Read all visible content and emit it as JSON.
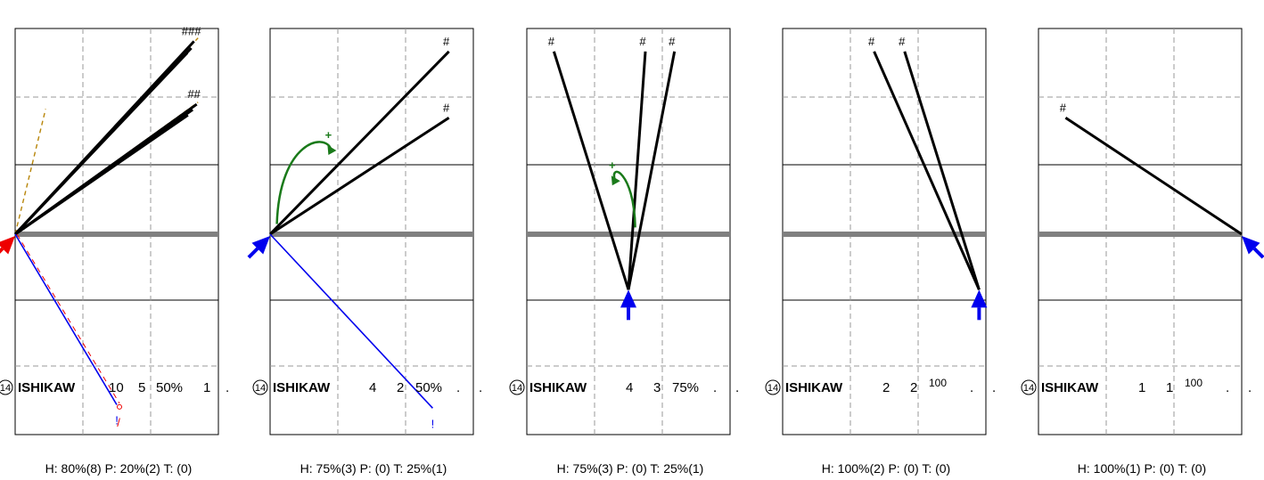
{
  "colors": {
    "frame": "#000000",
    "grid": "#999999",
    "baseline": "#808080",
    "line": "#000000",
    "dashes": "#b8860b",
    "blue": "#0000ee",
    "red": "#ee0000",
    "green": "#1a7a1a"
  },
  "chart_data": [
    {
      "type": "scatter",
      "batter": "ISHIKAW",
      "number": "14",
      "row": {
        "c1": "10",
        "c2": "5",
        "pct": "50%",
        "c4": "1",
        "c5": "."
      },
      "summary": "H: 80%(8)  P: 20%(2)  T: (0)",
      "origin": [
        0,
        0
      ],
      "arrow": {
        "color": "red",
        "dir": "upright"
      },
      "hits": [
        {
          "to": [
            2.64,
            2.85
          ],
          "mark": "###"
        },
        {
          "to": [
            2.6,
            2.75
          ]
        },
        {
          "to": [
            2.54,
            2.68
          ]
        },
        {
          "to": [
            2.68,
            1.92
          ],
          "mark": "##"
        },
        {
          "to": [
            2.62,
            1.84
          ]
        },
        {
          "to": [
            2.55,
            1.76
          ]
        }
      ],
      "dashed_lines": [
        {
          "to": [
            2.7,
            2.9
          ]
        },
        {
          "to": [
            2.7,
            1.95
          ]
        },
        {
          "to": [
            0.45,
            1.85
          ]
        }
      ],
      "blue_lines": [
        {
          "to": [
            1.5,
            -2.52
          ],
          "mark": "!"
        }
      ],
      "red_marks": [
        {
          "at": [
            1.5,
            -2.63
          ],
          "mark": "/"
        }
      ],
      "green": null
    },
    {
      "type": "scatter",
      "batter": "ISHIKAW",
      "number": "14",
      "row": {
        "c1": "4",
        "c2": "2",
        "pct": "50%",
        "c4": ".",
        "c5": "."
      },
      "summary": "H: 75%(3)  P: (0)  T: 25%(1)",
      "origin": [
        0,
        0
      ],
      "arrow": {
        "color": "blue",
        "dir": "upright"
      },
      "hits": [
        {
          "to": [
            2.64,
            2.7
          ],
          "mark": "#"
        },
        {
          "to": [
            2.64,
            1.72
          ],
          "mark": "#"
        }
      ],
      "dashed_lines": [],
      "blue_lines": [
        {
          "to": [
            2.4,
            -2.57
          ],
          "mark": "!"
        }
      ],
      "red_marks": [],
      "green": {
        "from": [
          0.1,
          0.15
        ],
        "to": [
          0.9,
          1.25
        ],
        "mark": "+"
      }
    },
    {
      "type": "scatter",
      "batter": "ISHIKAW",
      "number": "14",
      "row": {
        "c1": "4",
        "c2": "3",
        "pct": "75%",
        "c4": ".",
        "c5": "."
      },
      "summary": "H: 75%(3)  P: (0)  T: 25%(1)",
      "origin": [
        1.5,
        -0.82
      ],
      "arrow": {
        "color": "blue",
        "dir": "up"
      },
      "hits": [
        {
          "to": [
            0.4,
            2.7
          ],
          "mark": "#"
        },
        {
          "to": [
            1.75,
            2.7
          ],
          "mark": "#"
        },
        {
          "to": [
            2.18,
            2.7
          ],
          "mark": "#"
        }
      ],
      "dashed_lines": [],
      "blue_lines": [],
      "red_marks": [],
      "green": {
        "from": [
          1.6,
          0.1
        ],
        "to": [
          1.3,
          0.8
        ],
        "mark": "+"
      }
    },
    {
      "type": "scatter",
      "batter": "ISHIKAW",
      "number": "14",
      "row": {
        "c1": "2",
        "c2": "2",
        "pct": "100",
        "c4": ".",
        "c5": "."
      },
      "summary": "H: 100%(2)  P: (0)  T: (0)",
      "origin": [
        2.9,
        -0.82
      ],
      "arrow": {
        "color": "blue",
        "dir": "up"
      },
      "hits": [
        {
          "to": [
            1.35,
            2.7
          ],
          "mark": "#"
        },
        {
          "to": [
            1.8,
            2.7
          ],
          "mark": "#"
        }
      ],
      "dashed_lines": [],
      "blue_lines": [],
      "red_marks": [],
      "green": null
    },
    {
      "type": "scatter",
      "batter": "ISHIKAW",
      "number": "14",
      "row": {
        "c1": "1",
        "c2": "1",
        "pct": "100",
        "c4": ".",
        "c5": "."
      },
      "summary": "H: 100%(1)  P: (0)  T: (0)",
      "origin": [
        3.0,
        0
      ],
      "arrow": {
        "color": "blue",
        "dir": "upleft"
      },
      "hits": [
        {
          "to": [
            0.4,
            1.72
          ],
          "mark": "#"
        }
      ],
      "dashed_lines": [],
      "blue_lines": [],
      "red_marks": [],
      "green": null
    }
  ]
}
